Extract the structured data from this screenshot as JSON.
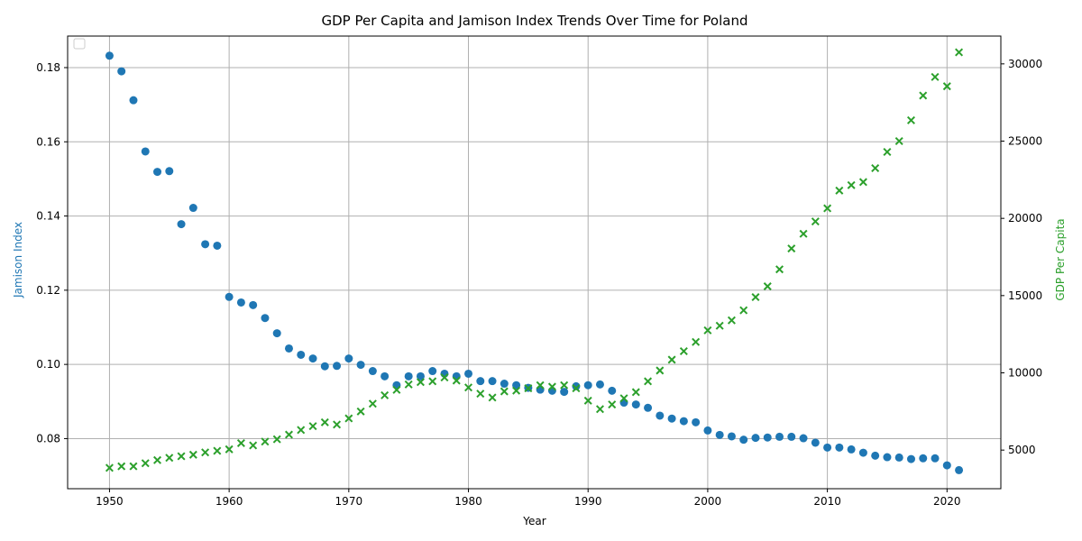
{
  "chart_data": {
    "type": "scatter",
    "title": "GDP Per Capita and Jamison Index Trends Over Time for Poland",
    "xlabel": "Year",
    "ylabel_left": "Jamison Index",
    "ylabel_right": "GDP Per Capita",
    "xlim": [
      1946.5,
      2024.5
    ],
    "ylim_left": [
      0.0665,
      0.1885
    ],
    "ylim_right": [
      2500,
      31800
    ],
    "x_ticks": [
      1950,
      1960,
      1970,
      1980,
      1990,
      2000,
      2010,
      2020
    ],
    "y_ticks_left": [
      0.08,
      0.1,
      0.12,
      0.14,
      0.16,
      0.18
    ],
    "y_ticks_right": [
      5000,
      10000,
      15000,
      20000,
      25000,
      30000
    ],
    "grid": true,
    "legend": {
      "placement": "top-left",
      "entries": []
    },
    "colors": {
      "jamison": "#1f77b4",
      "gdp": "#2ca02c",
      "grid": "#b0b0b0",
      "text": "#000000"
    },
    "x": [
      1950,
      1951,
      1952,
      1953,
      1954,
      1955,
      1956,
      1957,
      1958,
      1959,
      1960,
      1961,
      1962,
      1963,
      1964,
      1965,
      1966,
      1967,
      1968,
      1969,
      1970,
      1971,
      1972,
      1973,
      1974,
      1975,
      1976,
      1977,
      1978,
      1979,
      1980,
      1981,
      1982,
      1983,
      1984,
      1985,
      1986,
      1987,
      1988,
      1989,
      1990,
      1991,
      1992,
      1993,
      1994,
      1995,
      1996,
      1997,
      1998,
      1999,
      2000,
      2001,
      2002,
      2003,
      2004,
      2005,
      2006,
      2007,
      2008,
      2009,
      2010,
      2011,
      2012,
      2013,
      2014,
      2015,
      2016,
      2017,
      2018,
      2019,
      2020,
      2021
    ],
    "series": [
      {
        "name": "Jamison Index",
        "axis": "left",
        "marker": "circle",
        "values": [
          0.1832,
          0.179,
          0.1712,
          0.1574,
          0.1519,
          0.1521,
          0.1378,
          0.1422,
          0.1324,
          0.132,
          0.1182,
          0.1167,
          0.116,
          0.1125,
          0.1084,
          0.1043,
          0.1026,
          0.1016,
          0.0995,
          0.0996,
          0.1016,
          0.0999,
          0.0982,
          0.0968,
          0.0944,
          0.0968,
          0.0968,
          0.0982,
          0.0975,
          0.0968,
          0.0975,
          0.0955,
          0.0955,
          0.0948,
          0.0944,
          0.0937,
          0.0932,
          0.0929,
          0.0926,
          0.0941,
          0.0944,
          0.0946,
          0.0929,
          0.0897,
          0.0892,
          0.0883,
          0.0862,
          0.0854,
          0.0847,
          0.0844,
          0.0822,
          0.081,
          0.0806,
          0.0797,
          0.0802,
          0.0803,
          0.0805,
          0.0805,
          0.0801,
          0.0789,
          0.0776,
          0.0776,
          0.0771,
          0.0762,
          0.0754,
          0.075,
          0.0749,
          0.0745,
          0.0747,
          0.0747,
          0.0728,
          0.0715
        ]
      },
      {
        "name": "GDP Per Capita",
        "axis": "right",
        "marker": "x",
        "values": [
          3850,
          3950,
          3950,
          4150,
          4350,
          4500,
          4600,
          4700,
          4850,
          4950,
          5050,
          5450,
          5300,
          5550,
          5700,
          6000,
          6300,
          6550,
          6800,
          6650,
          7050,
          7500,
          8000,
          8550,
          8900,
          9250,
          9400,
          9450,
          9700,
          9500,
          9050,
          8650,
          8400,
          8800,
          8850,
          9000,
          9200,
          9100,
          9200,
          9000,
          8200,
          7650,
          7950,
          8350,
          8750,
          9450,
          10150,
          10850,
          11400,
          12000,
          12750,
          13050,
          13400,
          14050,
          14900,
          15600,
          16700,
          18050,
          19000,
          19800,
          20650,
          21800,
          22150,
          22350,
          23250,
          24300,
          25000,
          26350,
          27950,
          29150,
          28550,
          30750
        ]
      }
    ]
  }
}
